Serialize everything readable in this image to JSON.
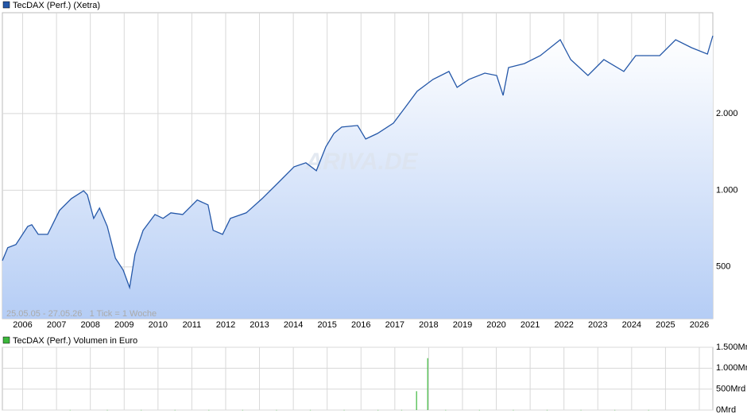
{
  "chart_data": [
    {
      "type": "line",
      "legend": "TecDAX (Perf.) (Xetra)",
      "color": "#2457a8",
      "log_scale": true,
      "grid": true,
      "watermark": "ARIVA.DE",
      "annotation": "25.05.05 - 27.05.26   1 Tick = 1 Woche",
      "x": [
        2005.4,
        2005.56,
        2005.8,
        2006.15,
        2006.27,
        2006.46,
        2006.74,
        2007.09,
        2007.44,
        2007.8,
        2007.91,
        2008.1,
        2008.27,
        2008.5,
        2008.74,
        2008.97,
        2009.16,
        2009.32,
        2009.56,
        2009.91,
        2010.15,
        2010.38,
        2010.73,
        2011.16,
        2011.48,
        2011.63,
        2011.91,
        2012.14,
        2012.61,
        2013.08,
        2013.55,
        2014.02,
        2014.37,
        2014.68,
        2014.96,
        2015.2,
        2015.43,
        2015.9,
        2016.14,
        2016.49,
        2016.96,
        2017.31,
        2017.66,
        2018.13,
        2018.6,
        2018.84,
        2019.19,
        2019.66,
        2020.01,
        2020.2,
        2020.36,
        2020.83,
        2021.3,
        2021.89,
        2022.2,
        2022.71,
        2023.18,
        2023.77,
        2024.12,
        2024.83,
        2025.3,
        2025.77,
        2026.24,
        2026.4
      ],
      "values": [
        529,
        595,
        612,
        721,
        732,
        671,
        671,
        833,
        927,
        995,
        960,
        775,
        851,
        721,
        541,
        486,
        415,
        561,
        696,
        803,
        775,
        815,
        803,
        915,
        876,
        696,
        671,
        775,
        815,
        927,
        1070,
        1236,
        1282,
        1193,
        1480,
        1672,
        1770,
        1796,
        1589,
        1672,
        1835,
        2118,
        2446,
        2724,
        2927,
        2536,
        2724,
        2884,
        2823,
        2358,
        3033,
        3145,
        3378,
        3901,
        3260,
        2823,
        3260,
        2927,
        3378,
        3378,
        3901,
        3630,
        3428,
        4044
      ],
      "xlim": [
        2005.4,
        2026.4
      ],
      "xticks": [
        2006,
        2007,
        2008,
        2009,
        2010,
        2011,
        2012,
        2013,
        2014,
        2015,
        2016,
        2017,
        2018,
        2019,
        2020,
        2021,
        2022,
        2023,
        2024,
        2025,
        2026
      ],
      "ylim": [
        313,
        4980
      ],
      "yticks": [
        500,
        {
          "value": 1000,
          "label": "1.000"
        },
        {
          "value": 2000,
          "label": "2.000"
        }
      ]
    },
    {
      "type": "bar",
      "legend": "TecDAX (Perf.) Volumen in Euro",
      "color": "#3cb83c",
      "x": [
        2007.4,
        2008.5,
        2009.5,
        2010.5,
        2011.5,
        2012.5,
        2013.5,
        2014.5,
        2015.5,
        2016.5,
        2017.2,
        2017.64,
        2017.97,
        2018.5,
        2019.5,
        2020.5,
        2021.5,
        2022.5,
        2023.5,
        2024.5
      ],
      "values": [
        3,
        3,
        3,
        3,
        3,
        3,
        3,
        3,
        3,
        3,
        3,
        450,
        1240,
        3,
        3,
        3,
        3,
        3,
        3,
        3
      ],
      "xlim": [
        2005.4,
        2026.4
      ],
      "ylim": [
        0,
        1500
      ],
      "yticks": [
        {
          "value": 0,
          "label": "0Mrd"
        },
        {
          "value": 500,
          "label": "500Mrd"
        },
        {
          "value": 1000,
          "label": "1.000Mr"
        },
        {
          "value": 1500,
          "label": "1.500Mr"
        }
      ]
    }
  ]
}
